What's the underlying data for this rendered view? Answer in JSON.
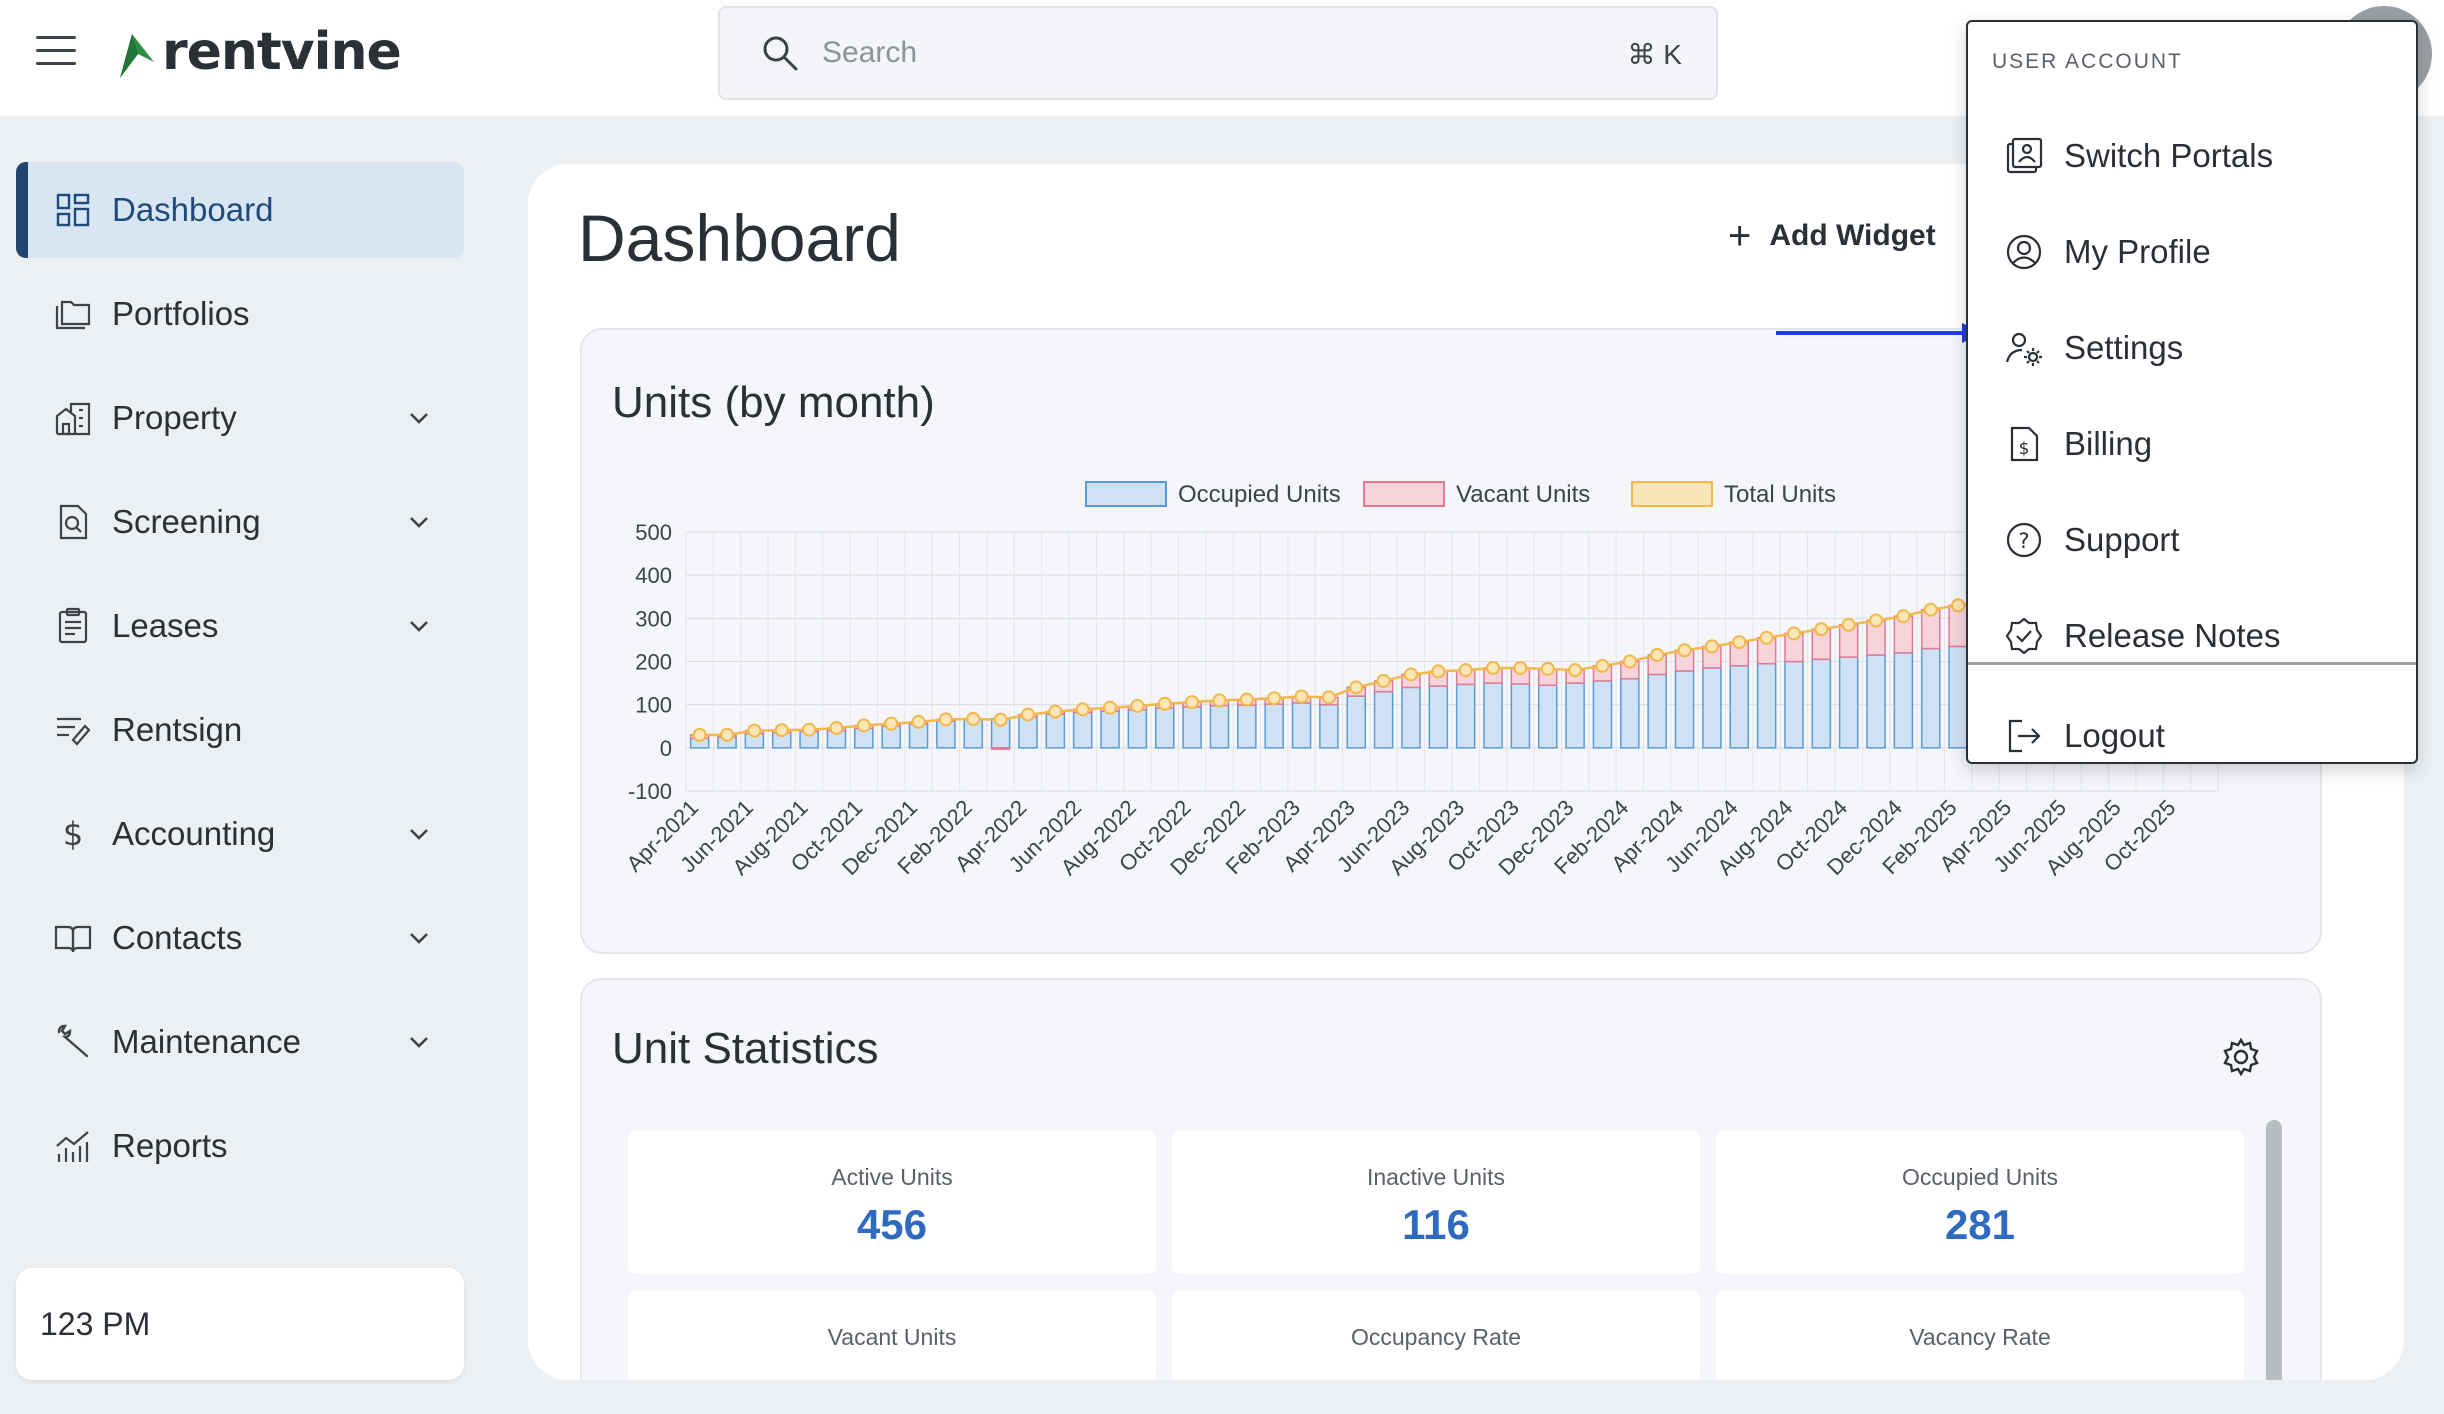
{
  "header": {
    "brand": "rentvine",
    "search_placeholder": "Search",
    "shortcut": "⌘ K"
  },
  "sidebar": {
    "items": [
      {
        "label": "Dashboard",
        "icon": "grid-icon",
        "expandable": false,
        "active": true
      },
      {
        "label": "Portfolios",
        "icon": "folders-icon",
        "expandable": false
      },
      {
        "label": "Property",
        "icon": "buildings-icon",
        "expandable": true
      },
      {
        "label": "Screening",
        "icon": "document-search-icon",
        "expandable": true
      },
      {
        "label": "Leases",
        "icon": "clipboard-icon",
        "expandable": true
      },
      {
        "label": "Rentsign",
        "icon": "sign-pen-icon",
        "expandable": false
      },
      {
        "label": "Accounting",
        "icon": "dollar-icon",
        "expandable": true
      },
      {
        "label": "Contacts",
        "icon": "book-icon",
        "expandable": true
      },
      {
        "label": "Maintenance",
        "icon": "wrench-icon",
        "expandable": true
      },
      {
        "label": "Reports",
        "icon": "chart-icon",
        "expandable": false
      }
    ],
    "org_name": "123 PM"
  },
  "main": {
    "title": "Dashboard",
    "add_widget_label": "Add Widget",
    "units_chart_title": "Units (by month)",
    "unit_statistics": {
      "title": "Unit Statistics",
      "stats": [
        {
          "label": "Active Units",
          "value": "456"
        },
        {
          "label": "Inactive Units",
          "value": "116"
        },
        {
          "label": "Occupied Units",
          "value": "281"
        },
        {
          "label": "Vacant Units",
          "value": ""
        },
        {
          "label": "Occupancy Rate",
          "value": ""
        },
        {
          "label": "Vacancy Rate",
          "value": ""
        }
      ]
    }
  },
  "user_menu": {
    "header": "USER ACCOUNT",
    "items": [
      {
        "label": "Switch Portals",
        "icon": "switch-portals-icon"
      },
      {
        "label": "My Profile",
        "icon": "user-circle-icon"
      },
      {
        "label": "Settings",
        "icon": "user-gear-icon"
      },
      {
        "label": "Billing",
        "icon": "billing-icon"
      },
      {
        "label": "Support",
        "icon": "question-circle-icon"
      },
      {
        "label": "Release Notes",
        "icon": "badge-check-icon"
      }
    ],
    "logout_label": "Logout"
  },
  "colors": {
    "occupied_fill": "#cfe2f5",
    "occupied_stroke": "#5b9bd5",
    "vacant_fill": "#f7d3dc",
    "vacant_stroke": "#e07b93",
    "total_fill": "#fbe6b7",
    "total_stroke": "#f2b84b",
    "accent": "#2e6bbf",
    "arrow": "#1f3fe0"
  },
  "chart_data": {
    "type": "bar",
    "title": "Units (by month)",
    "legend_position": "top-center",
    "ylim": [
      -100,
      500
    ],
    "yticks": [
      500,
      400,
      300,
      200,
      100,
      0,
      -100
    ],
    "grid": true,
    "x_tick_labels": [
      "Apr-2021",
      "Jun-2021",
      "Aug-2021",
      "Oct-2021",
      "Dec-2021",
      "Feb-2022",
      "Apr-2022",
      "Jun-2022",
      "Aug-2022",
      "Oct-2022",
      "Dec-2022",
      "Feb-2023",
      "Apr-2023",
      "Jun-2023",
      "Aug-2023",
      "Oct-2023",
      "Dec-2023",
      "Feb-2024",
      "Apr-2024",
      "Jun-2024",
      "Aug-2024",
      "Oct-2024",
      "Dec-2024",
      "Feb-2025",
      "Apr-2025",
      "Jun-2025",
      "Aug-2025",
      "Oct-2025"
    ],
    "series": [
      {
        "name": "Occupied Units",
        "values": [
          22,
          25,
          33,
          35,
          38,
          40,
          45,
          50,
          55,
          62,
          65,
          68,
          72,
          78,
          82,
          85,
          88,
          92,
          95,
          98,
          99,
          101,
          104,
          100,
          120,
          130,
          140,
          143,
          147,
          150,
          148,
          145,
          150,
          155,
          160,
          170,
          178,
          185,
          190,
          195,
          200,
          205,
          210,
          215,
          220,
          230,
          235,
          240
        ]
      },
      {
        "name": "Vacant Units",
        "values": [
          8,
          5,
          7,
          6,
          4,
          6,
          7,
          6,
          5,
          4,
          2,
          -3,
          5,
          6,
          7,
          8,
          9,
          10,
          11,
          12,
          13,
          14,
          15,
          17,
          20,
          25,
          30,
          34,
          33,
          35,
          37,
          38,
          30,
          35,
          40,
          45,
          48,
          50,
          55,
          60,
          65,
          70,
          75,
          80,
          85,
          90,
          95,
          100
        ]
      },
      {
        "name": "Total Units",
        "values": [
          30,
          30,
          40,
          41,
          42,
          46,
          52,
          56,
          60,
          66,
          67,
          65,
          77,
          84,
          89,
          93,
          97,
          102,
          106,
          110,
          112,
          115,
          119,
          117,
          140,
          155,
          170,
          177,
          180,
          185,
          185,
          183,
          180,
          190,
          200,
          215,
          226,
          235,
          245,
          255,
          265,
          275,
          285,
          295,
          305,
          320,
          330,
          340
        ]
      }
    ]
  }
}
